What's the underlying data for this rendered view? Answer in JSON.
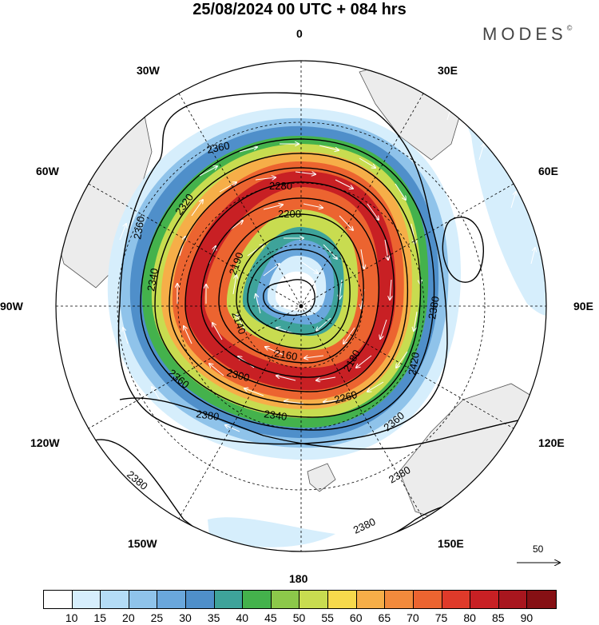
{
  "title": "25/08/2024  00 UTC  + 084 hrs",
  "brand": "MODES",
  "brand_mark": "©",
  "longitude_labels": {
    "top": "0",
    "top_left": "30W",
    "top_right": "30E",
    "upper_left": "60W",
    "upper_right": "60E",
    "left": "90W",
    "right": "90E",
    "lower_left": "120W",
    "lower_right": "120E",
    "bottom_left": "150W",
    "bottom_right": "150E",
    "bottom": "180"
  },
  "contour_labels": {
    "c2360_nw": "2360",
    "c2320": "2320",
    "c2280": "2280",
    "c2200": "2200",
    "c2190": "2190",
    "c2140": "2140",
    "c2160": "2160",
    "c2180": "2180",
    "c2300": "2300",
    "c2260": "2260",
    "c2340": "2340",
    "c2360_w": "2360",
    "c2360_sw": "2360",
    "c2360_se": "2360",
    "c2380_s": "2380",
    "c2380_e": "2380",
    "c2380_sw": "2380",
    "c2380_se1": "2380",
    "c2380_se2": "2380",
    "c2340_w": "2340",
    "c2420": "2420"
  },
  "reference_vector": "50",
  "colorbar": {
    "labels": [
      "10",
      "15",
      "20",
      "25",
      "30",
      "35",
      "40",
      "45",
      "50",
      "55",
      "60",
      "65",
      "70",
      "75",
      "80",
      "85",
      "90"
    ],
    "colors": [
      "#ffffff",
      "#d6eefc",
      "#b4dcf6",
      "#8fc3ea",
      "#6aa7dc",
      "#4f8fca",
      "#3ea39a",
      "#44b24c",
      "#8cc84a",
      "#c8dc50",
      "#f6d94c",
      "#f6ae48",
      "#f28a3c",
      "#ec6430",
      "#df3a2a",
      "#c82024",
      "#a8161e",
      "#861014"
    ]
  }
}
